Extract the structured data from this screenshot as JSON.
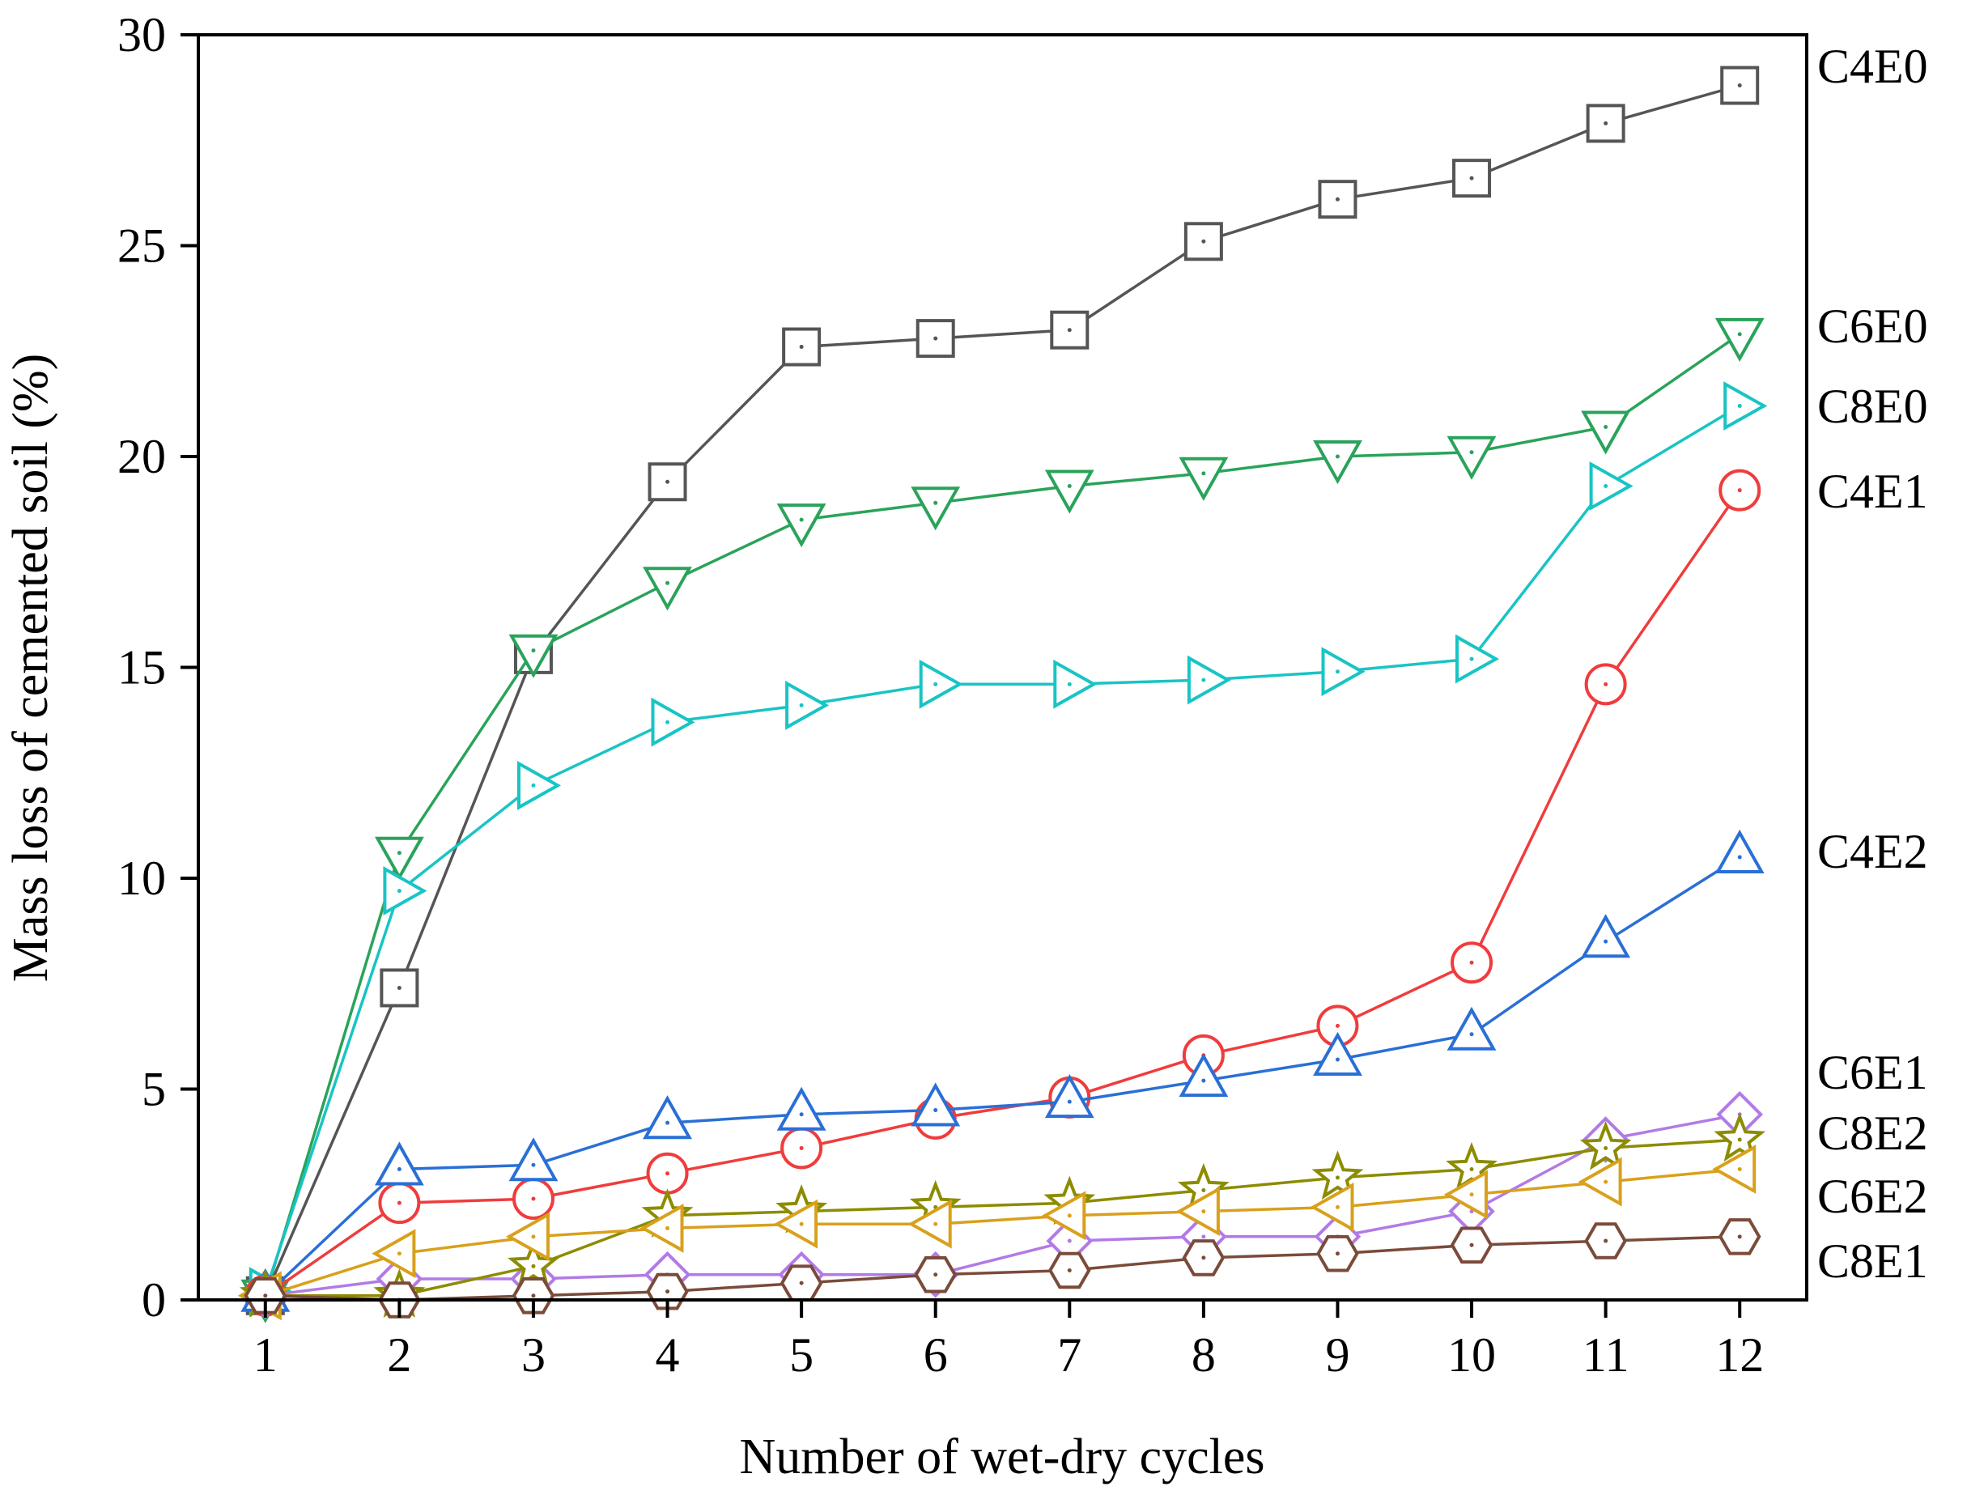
{
  "chart_data": {
    "type": "line",
    "xlabel": "Number of wet-dry cycles",
    "ylabel": "Mass loss of cemented soil (%)",
    "xlim": [
      0.5,
      12.5
    ],
    "ylim": [
      0,
      30
    ],
    "x": [
      1,
      2,
      3,
      4,
      5,
      6,
      7,
      8,
      9,
      10,
      11,
      12
    ],
    "xticks": [
      "1",
      "2",
      "3",
      "4",
      "5",
      "6",
      "7",
      "8",
      "9",
      "10",
      "11",
      "12"
    ],
    "yticks": [
      "0",
      "5",
      "10",
      "15",
      "20",
      "25",
      "30"
    ],
    "grid": false,
    "legend": "labels at right end of each series",
    "series": [
      {
        "name": "C4E0",
        "color": "#555555",
        "marker": "square",
        "values": [
          0.1,
          7.4,
          15.3,
          19.4,
          22.6,
          22.8,
          23.0,
          25.1,
          26.1,
          26.6,
          27.9,
          28.8
        ]
      },
      {
        "name": "C6E0",
        "color": "#2aa35a",
        "marker": "triangle-down",
        "values": [
          0.1,
          10.6,
          15.4,
          17.0,
          18.5,
          18.9,
          19.3,
          19.6,
          20.0,
          20.1,
          20.7,
          22.9
        ]
      },
      {
        "name": "C8E0",
        "color": "#19c4c4",
        "marker": "triangle-right",
        "values": [
          0.2,
          9.7,
          12.2,
          13.7,
          14.1,
          14.6,
          14.6,
          14.7,
          14.9,
          15.2,
          19.3,
          21.2
        ]
      },
      {
        "name": "C4E1",
        "color": "#f03c3c",
        "marker": "circle",
        "values": [
          0.1,
          2.3,
          2.4,
          3.0,
          3.6,
          4.3,
          4.8,
          5.8,
          6.5,
          8.0,
          14.6,
          19.2
        ]
      },
      {
        "name": "C4E2",
        "color": "#2a6fd6",
        "marker": "triangle-up",
        "values": [
          0.1,
          3.1,
          3.2,
          4.2,
          4.4,
          4.5,
          4.7,
          5.2,
          5.7,
          6.3,
          8.5,
          10.5
        ]
      },
      {
        "name": "C6E1",
        "color": "#b27ae6",
        "marker": "diamond",
        "values": [
          0.1,
          0.5,
          0.5,
          0.6,
          0.6,
          0.6,
          1.4,
          1.5,
          1.5,
          2.1,
          3.8,
          4.4
        ]
      },
      {
        "name": "C8E2",
        "color": "#8c8c00",
        "marker": "star",
        "values": [
          0.1,
          0.1,
          0.8,
          2.0,
          2.1,
          2.2,
          2.3,
          2.6,
          2.9,
          3.1,
          3.6,
          3.8
        ]
      },
      {
        "name": "C6E2",
        "color": "#d9a01c",
        "marker": "triangle-left",
        "values": [
          0.1,
          1.1,
          1.5,
          1.7,
          1.8,
          1.8,
          2.0,
          2.1,
          2.2,
          2.5,
          2.8,
          3.1
        ]
      },
      {
        "name": "C8E1",
        "color": "#7b4b3a",
        "marker": "hexagon",
        "values": [
          0.1,
          0.0,
          0.1,
          0.2,
          0.4,
          0.6,
          0.7,
          1.0,
          1.1,
          1.3,
          1.4,
          1.5
        ]
      }
    ]
  }
}
